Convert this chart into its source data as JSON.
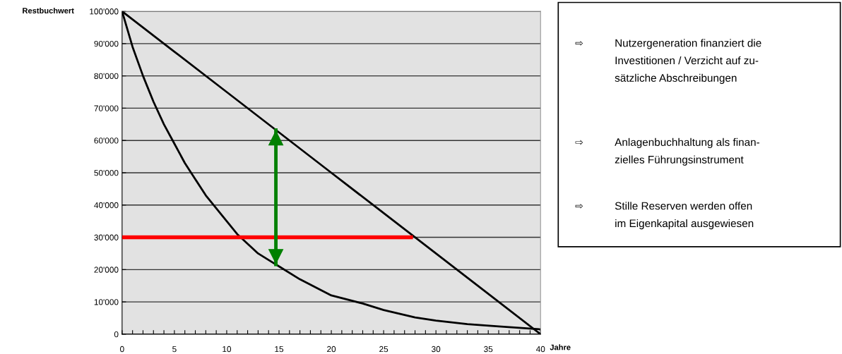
{
  "chart_data": {
    "type": "line",
    "ylabel": "Restbuchwert",
    "xlabel": "Jahre",
    "series": [
      {
        "color": "#000000",
        "x": [
          0,
          5,
          10,
          15,
          20,
          25,
          30,
          35,
          40
        ],
        "values": [
          100000,
          87500,
          75000,
          62500,
          50000,
          37500,
          25000,
          12500,
          0
        ]
      },
      {
        "color": "#000000",
        "x": [
          0,
          1,
          2,
          3,
          4,
          5,
          6,
          7,
          8,
          9,
          10,
          11,
          12,
          13,
          14,
          15,
          17,
          20,
          23,
          25,
          28,
          30,
          33,
          36,
          40
        ],
        "values": [
          100000,
          89000,
          80000,
          72000,
          65000,
          59000,
          53000,
          48000,
          43000,
          39000,
          35000,
          31000,
          28000,
          25000,
          23000,
          21000,
          17000,
          12000,
          9500,
          7500,
          5200,
          4200,
          3100,
          2400,
          1500
        ]
      },
      {
        "color": "#ff0000",
        "x": [
          0,
          27.8
        ],
        "values": [
          30000,
          30000
        ]
      }
    ],
    "ref_lines": [
      {
        "axis": "x",
        "value": 14.7,
        "color": "#008000"
      }
    ],
    "xlim": [
      0,
      40
    ],
    "ylim": [
      0,
      100000
    ],
    "xticks": [
      0,
      {
        "value": 1,
        "label": null
      },
      {
        "value": 2,
        "label": null
      },
      {
        "value": 3,
        "label": null
      },
      {
        "value": 4,
        "label": null
      },
      5,
      {
        "value": 6,
        "label": null
      },
      {
        "value": 7,
        "label": null
      },
      {
        "value": 8,
        "label": null
      },
      {
        "value": 9,
        "label": null
      },
      10,
      {
        "value": 11,
        "label": null
      },
      {
        "value": 12,
        "label": null
      },
      {
        "value": 13,
        "label": null
      },
      {
        "value": 14,
        "label": null
      },
      15,
      {
        "value": 16,
        "label": null
      },
      {
        "value": 17,
        "label": null
      },
      {
        "value": 18,
        "label": null
      },
      {
        "value": 19,
        "label": null
      },
      20,
      {
        "value": 21,
        "label": null
      },
      {
        "value": 22,
        "label": null
      },
      {
        "value": 23,
        "label": null
      },
      {
        "value": 24,
        "label": null
      },
      25,
      {
        "value": 26,
        "label": null
      },
      {
        "value": 27,
        "label": null
      },
      {
        "value": 28,
        "label": null
      },
      {
        "value": 29,
        "label": null
      },
      30,
      {
        "value": 31,
        "label": null
      },
      {
        "value": 32,
        "label": null
      },
      {
        "value": 33,
        "label": null
      },
      {
        "value": 34,
        "label": null
      },
      35,
      {
        "value": 36,
        "label": null
      },
      {
        "value": 37,
        "label": null
      },
      {
        "value": 38,
        "label": null
      },
      {
        "value": 39,
        "label": null
      },
      40
    ],
    "yticks": [
      0,
      {
        "value": 10000,
        "label": "10'000"
      },
      {
        "value": 20000,
        "label": "20'000"
      },
      {
        "value": 30000,
        "label": "30'000"
      },
      {
        "value": 40000,
        "label": "40'000"
      },
      {
        "value": 50000,
        "label": "50'000"
      },
      {
        "value": 60000,
        "label": "60'000"
      },
      {
        "value": 70000,
        "label": "70'000"
      },
      {
        "value": 80000,
        "label": "80'000"
      },
      {
        "value": 90000,
        "label": "90'000"
      },
      {
        "value": 100000,
        "label": "100'000"
      }
    ],
    "grid": "y",
    "legend": false,
    "annotations": [
      "⇨\tNutzergeneration finanziert die\nInvestitionen / Verzicht auf zu-\nsätzliche Abschreibungen",
      "⇨\tAnlagenbuchhaltung als finan-\nzielles Führungsinstrument",
      "⇨\tStille Reserven werden offen\nim Eigenkapital ausgewiesen"
    ]
  }
}
